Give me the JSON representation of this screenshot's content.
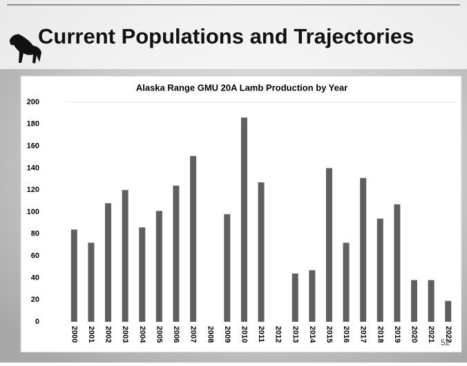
{
  "slide_title": "Current Populations and Trajectories",
  "slide_number": "52",
  "chart_data": {
    "type": "bar",
    "title": "Alaska Range GMU 20A Lamb Production by Year",
    "categories": [
      "2000",
      "2001",
      "2002",
      "2003",
      "2004",
      "2005",
      "2006",
      "2007",
      "2008",
      "2009",
      "2010",
      "2011",
      "2012",
      "2013",
      "2014",
      "2015",
      "2016",
      "2017",
      "2018",
      "2019",
      "2020",
      "2021",
      "2022"
    ],
    "values": [
      84,
      72,
      108,
      120,
      86,
      101,
      124,
      151,
      null,
      98,
      186,
      127,
      null,
      44,
      47,
      140,
      72,
      131,
      94,
      107,
      38,
      38,
      19
    ],
    "color": "#5f5f5f",
    "ylim": [
      0,
      200
    ],
    "yticks": [
      0,
      20,
      40,
      60,
      80,
      100,
      120,
      140,
      160,
      180,
      200
    ]
  }
}
